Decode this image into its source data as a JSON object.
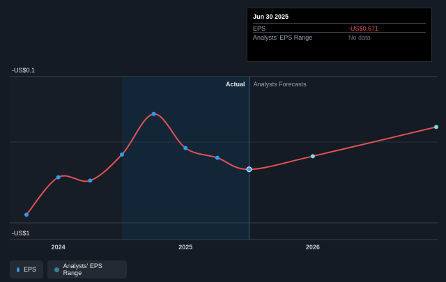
{
  "chart_data": {
    "type": "line",
    "y_top_label": "-US$0.1",
    "y_bottom_label": "-US$1",
    "ylim": [
      -1,
      -0.1
    ],
    "x_ticks": [
      {
        "label": "2024",
        "x": 2024.0
      },
      {
        "label": "2025",
        "x": 2025.0
      },
      {
        "label": "2026",
        "x": 2026.0
      }
    ],
    "xlim": [
      2023.7,
      2026.97
    ],
    "section_labels": {
      "actual": "Actual",
      "forecast": "Analysts Forecasts"
    },
    "divider_x": 2025.5,
    "highlight_start_x": 2024.5,
    "series": [
      {
        "name": "EPS",
        "color": "#e05252",
        "points": [
          {
            "x": 2023.75,
            "y": -0.95
          },
          {
            "x": 2024.0,
            "y": -0.72
          },
          {
            "x": 2024.25,
            "y": -0.74
          },
          {
            "x": 2024.5,
            "y": -0.58
          },
          {
            "x": 2024.75,
            "y": -0.33
          },
          {
            "x": 2025.0,
            "y": -0.54
          },
          {
            "x": 2025.25,
            "y": -0.6
          },
          {
            "x": 2025.5,
            "y": -0.671
          },
          {
            "x": 2026.0,
            "y": -0.59
          },
          {
            "x": 2026.97,
            "y": -0.41
          }
        ],
        "actual_count": 8
      }
    ]
  },
  "tooltip": {
    "date": "Jun 30 2025",
    "eps_label": "EPS",
    "eps_value": "-US$0.671",
    "range_label": "Analysts' EPS Range",
    "range_value": "No data"
  },
  "legend": [
    {
      "label": "EPS",
      "color": "#2f9bf0"
    },
    {
      "label": "Analysts' EPS Range",
      "color": "#3a7f8f"
    }
  ],
  "colors": {
    "actual_dot": "#2f9bf0",
    "forecast_dot": "#7fd8e6",
    "eps_value": "#e05252",
    "highlight": "#13283a"
  }
}
